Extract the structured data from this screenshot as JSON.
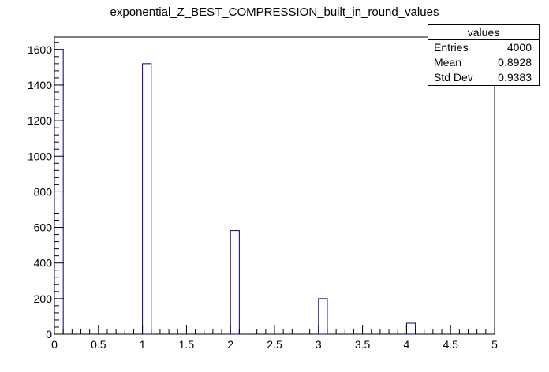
{
  "chart_data": {
    "type": "bar",
    "title": "exponential_Z_BEST_COMPRESSION_built_in_round_values",
    "xlabel": "",
    "ylabel": "",
    "xlim": [
      0,
      5
    ],
    "ylim": [
      0,
      1670
    ],
    "x_ticks": [
      "0",
      "0.5",
      "1",
      "1.5",
      "2",
      "2.5",
      "3",
      "3.5",
      "4",
      "4.5",
      "5"
    ],
    "y_ticks": [
      "0",
      "200",
      "400",
      "600",
      "800",
      "1000",
      "1200",
      "1400",
      "1600"
    ],
    "bin_width": 0.1,
    "bins": [
      {
        "x_low": 0.0,
        "x_high": 0.1,
        "value": 1600
      },
      {
        "x_low": 1.0,
        "x_high": 1.1,
        "value": 1520
      },
      {
        "x_low": 2.0,
        "x_high": 2.1,
        "value": 582
      },
      {
        "x_low": 3.0,
        "x_high": 3.1,
        "value": 200
      },
      {
        "x_low": 4.0,
        "x_high": 4.1,
        "value": 62
      }
    ],
    "grid": false,
    "bar_color": "#00007f",
    "stats_box": {
      "title": "values",
      "rows": [
        {
          "label": "Entries",
          "value": "4000"
        },
        {
          "label": "Mean",
          "value": "0.8928"
        },
        {
          "label": "Std Dev",
          "value": "0.9383"
        }
      ]
    }
  }
}
